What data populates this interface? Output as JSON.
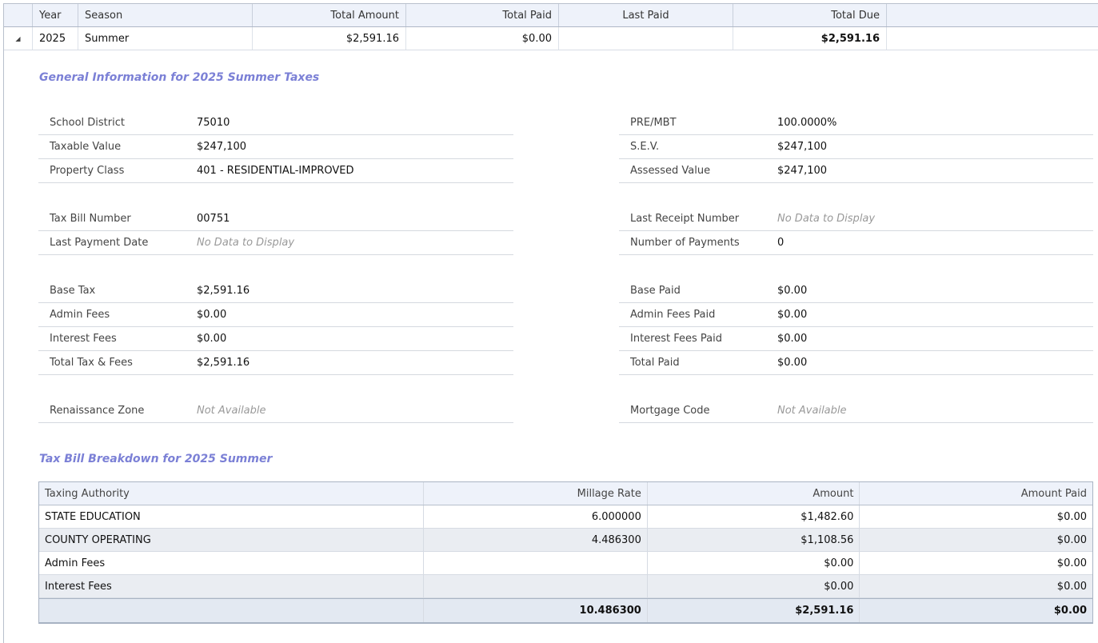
{
  "grid": {
    "headers": [
      "",
      "Year",
      "Season",
      "Total Amount",
      "Total Paid",
      "Last Paid",
      "Total Due",
      ""
    ],
    "row": {
      "expand_icon": "collapse-triangle-icon",
      "year": "2025",
      "season": "Summer",
      "total_amount": "$2,591.16",
      "total_paid": "$0.00",
      "last_paid": "",
      "total_due": "$2,591.16"
    }
  },
  "general": {
    "title": "General Information for 2025 Summer Taxes",
    "left": [
      [
        {
          "label": "School District",
          "value": "75010"
        },
        {
          "label": "Taxable Value",
          "value": "$247,100"
        },
        {
          "label": "Property Class",
          "value": "401 - RESIDENTIAL-IMPROVED"
        }
      ],
      [
        {
          "label": "Tax Bill Number",
          "value": "00751"
        },
        {
          "label": "Last Payment Date",
          "value": "No Data to Display",
          "na": true
        }
      ],
      [
        {
          "label": "Base Tax",
          "value": "$2,591.16"
        },
        {
          "label": "Admin Fees",
          "value": "$0.00"
        },
        {
          "label": "Interest Fees",
          "value": "$0.00"
        },
        {
          "label": "Total Tax & Fees",
          "value": "$2,591.16"
        }
      ],
      [
        {
          "label": "Renaissance Zone",
          "value": "Not Available",
          "na": true
        }
      ]
    ],
    "right": [
      [
        {
          "label": "PRE/MBT",
          "value": "100.0000%"
        },
        {
          "label": "S.E.V.",
          "value": "$247,100"
        },
        {
          "label": "Assessed Value",
          "value": "$247,100"
        }
      ],
      [
        {
          "label": "Last Receipt Number",
          "value": "No Data to Display",
          "na": true
        },
        {
          "label": "Number of Payments",
          "value": "0"
        }
      ],
      [
        {
          "label": "Base Paid",
          "value": "$0.00"
        },
        {
          "label": "Admin Fees Paid",
          "value": "$0.00"
        },
        {
          "label": "Interest Fees Paid",
          "value": "$0.00"
        },
        {
          "label": "Total Paid",
          "value": "$0.00"
        }
      ],
      [
        {
          "label": "Mortgage Code",
          "value": "Not Available",
          "na": true
        }
      ]
    ]
  },
  "breakdown": {
    "title": "Tax Bill Breakdown for 2025 Summer",
    "headers": [
      "Taxing Authority",
      "Millage Rate",
      "Amount",
      "Amount Paid"
    ],
    "rows": [
      [
        "STATE EDUCATION",
        "6.000000",
        "$1,482.60",
        "$0.00"
      ],
      [
        "COUNTY OPERATING",
        "4.486300",
        "$1,108.56",
        "$0.00"
      ],
      [
        "Admin Fees",
        "",
        "$0.00",
        "$0.00"
      ],
      [
        "Interest Fees",
        "",
        "$0.00",
        "$0.00"
      ]
    ],
    "totals": [
      "",
      "10.486300",
      "$2,591.16",
      "$0.00"
    ]
  },
  "colors": {
    "accent": "#7b80d6",
    "header_bg": "#eef2fa"
  }
}
